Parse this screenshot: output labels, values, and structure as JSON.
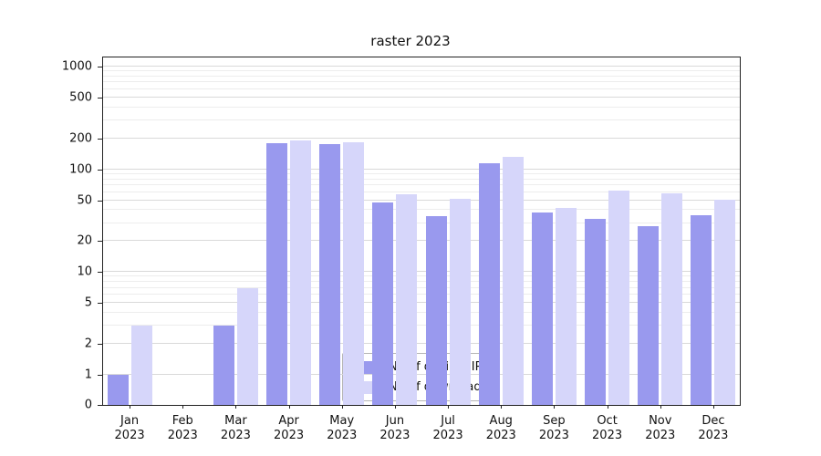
{
  "chart_data": {
    "type": "bar",
    "title": "raster 2023",
    "yscale": "symlog",
    "grid": true,
    "legend_position": "lower center",
    "ylim": [
      0,
      1000
    ],
    "yticks": [
      0,
      1,
      2,
      5,
      10,
      20,
      50,
      100,
      200,
      500,
      1000
    ],
    "minor_yticks": [
      3,
      4,
      6,
      7,
      8,
      9,
      30,
      40,
      60,
      70,
      80,
      90,
      300,
      400,
      600,
      700,
      800,
      900
    ],
    "categories": [
      "Jan",
      "Feb",
      "Mar",
      "Apr",
      "May",
      "Jun",
      "Jul",
      "Aug",
      "Sep",
      "Oct",
      "Nov",
      "Dec"
    ],
    "year": "2023",
    "series": [
      {
        "name": "Nb of distinct IPs",
        "color": "#9999ee",
        "values": [
          1,
          0,
          3,
          180,
          175,
          48,
          35,
          115,
          38,
          33,
          28,
          36
        ]
      },
      {
        "name": "Nb of downloads",
        "color": "#d6d6fa",
        "values": [
          3,
          0,
          7,
          192,
          183,
          57,
          52,
          132,
          42,
          62,
          58,
          51
        ]
      }
    ]
  }
}
